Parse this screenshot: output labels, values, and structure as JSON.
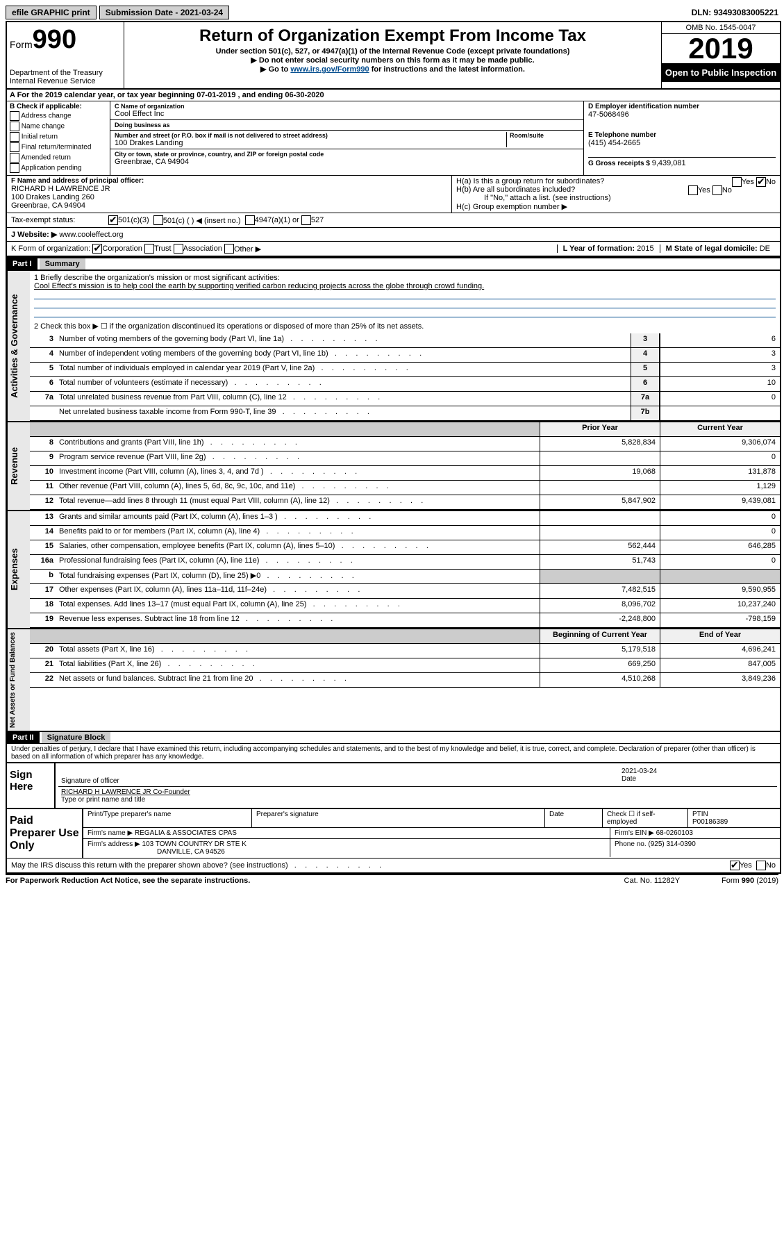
{
  "top": {
    "efile_btn": "efile GRAPHIC print",
    "sub_date_label": "Submission Date - ",
    "sub_date": "2021-03-24",
    "dln_label": "DLN: ",
    "dln": "93493083005221"
  },
  "header": {
    "form_prefix": "Form",
    "form_number": "990",
    "dept": "Department of the Treasury",
    "irs": "Internal Revenue Service",
    "title": "Return of Organization Exempt From Income Tax",
    "sub1": "Under section 501(c), 527, or 4947(a)(1) of the Internal Revenue Code (except private foundations)",
    "sub2": "▶ Do not enter social security numbers on this form as it may be made public.",
    "sub3_pre": "▶ Go to ",
    "sub3_link": "www.irs.gov/Form990",
    "sub3_post": " for instructions and the latest information.",
    "omb": "OMB No. 1545-0047",
    "year": "2019",
    "inspect": "Open to Public Inspection"
  },
  "rowA": {
    "text": "A For the 2019 calendar year, or tax year beginning 07-01-2019    , and ending 06-30-2020"
  },
  "boxB": {
    "label": "B Check if applicable:",
    "opts": [
      "Address change",
      "Name change",
      "Initial return",
      "Final return/terminated",
      "Amended return",
      "Application pending"
    ]
  },
  "boxC": {
    "name_label": "C Name of organization",
    "name": "Cool Effect Inc",
    "dba_label": "Doing business as",
    "dba": "",
    "addr_label": "Number and street (or P.O. box if mail is not delivered to street address)",
    "addr": "100 Drakes Landing",
    "room_label": "Room/suite",
    "city_label": "City or town, state or province, country, and ZIP or foreign postal code",
    "city": "Greenbrae, CA  94904"
  },
  "boxD": {
    "label": "D Employer identification number",
    "value": "47-5068496"
  },
  "boxE": {
    "label": "E Telephone number",
    "value": "(415) 454-2665"
  },
  "boxG": {
    "label": "G Gross receipts $ ",
    "value": "9,439,081"
  },
  "boxF": {
    "label": "F  Name and address of principal officer:",
    "name": "RICHARD H LAWRENCE JR",
    "addr1": "100 Drakes Landing 260",
    "addr2": "Greenbrae, CA  94904"
  },
  "boxH": {
    "ha_label": "H(a)  Is this a group return for subordinates?",
    "ha_yes": "Yes",
    "ha_no": "No",
    "hb_label": "H(b)  Are all subordinates included?",
    "hb_note": "If \"No,\" attach a list. (see instructions)",
    "hc_label": "H(c)  Group exemption number ▶"
  },
  "taxExempt": {
    "label": "Tax-exempt status:",
    "opt1": "501(c)(3)",
    "opt2": "501(c) (   ) ◀ (insert no.)",
    "opt3": "4947(a)(1) or",
    "opt4": "527"
  },
  "rowJ": {
    "label": "J   Website: ▶  ",
    "value": "www.cooleffect.org"
  },
  "rowK": {
    "label": "K Form of organization:",
    "opts": [
      "Corporation",
      "Trust",
      "Association",
      "Other ▶"
    ]
  },
  "rowL": {
    "label": "L Year of formation: ",
    "value": "2015"
  },
  "rowM": {
    "label": "M State of legal domicile: ",
    "value": "DE"
  },
  "part1": {
    "header": "Part I",
    "title": "Summary",
    "line1_label": "1   Briefly describe the organization's mission or most significant activities:",
    "line1_text": "Cool Effect's mission is to help cool the earth by supporting verified carbon reducing projects across the globe through crowd funding.",
    "line2": "2    Check this box ▶ ☐  if the organization discontinued its operations or disposed of more than 25% of its net assets.",
    "rows": [
      {
        "n": "3",
        "desc": "Number of voting members of the governing body (Part VI, line 1a)",
        "lbl": "3",
        "v": "6"
      },
      {
        "n": "4",
        "desc": "Number of independent voting members of the governing body (Part VI, line 1b)",
        "lbl": "4",
        "v": "3"
      },
      {
        "n": "5",
        "desc": "Total number of individuals employed in calendar year 2019 (Part V, line 2a)",
        "lbl": "5",
        "v": "3"
      },
      {
        "n": "6",
        "desc": "Total number of volunteers (estimate if necessary)",
        "lbl": "6",
        "v": "10"
      },
      {
        "n": "7a",
        "desc": "Total unrelated business revenue from Part VIII, column (C), line 12",
        "lbl": "7a",
        "v": "0"
      },
      {
        "n": "",
        "desc": "Net unrelated business taxable income from Form 990-T, line 39",
        "lbl": "7b",
        "v": ""
      }
    ],
    "prior_label": "Prior Year",
    "current_label": "Current Year",
    "beg_label": "Beginning of Current Year",
    "end_label": "End of Year"
  },
  "revenue": {
    "side": "Revenue",
    "rows": [
      {
        "n": "8",
        "desc": "Contributions and grants (Part VIII, line 1h)",
        "py": "5,828,834",
        "cy": "9,306,074"
      },
      {
        "n": "9",
        "desc": "Program service revenue (Part VIII, line 2g)",
        "py": "",
        "cy": "0"
      },
      {
        "n": "10",
        "desc": "Investment income (Part VIII, column (A), lines 3, 4, and 7d )",
        "py": "19,068",
        "cy": "131,878"
      },
      {
        "n": "11",
        "desc": "Other revenue (Part VIII, column (A), lines 5, 6d, 8c, 9c, 10c, and 11e)",
        "py": "",
        "cy": "1,129"
      },
      {
        "n": "12",
        "desc": "Total revenue—add lines 8 through 11 (must equal Part VIII, column (A), line 12)",
        "py": "5,847,902",
        "cy": "9,439,081"
      }
    ]
  },
  "expenses": {
    "side": "Expenses",
    "rows": [
      {
        "n": "13",
        "desc": "Grants and similar amounts paid (Part IX, column (A), lines 1–3 )",
        "py": "",
        "cy": "0"
      },
      {
        "n": "14",
        "desc": "Benefits paid to or for members (Part IX, column (A), line 4)",
        "py": "",
        "cy": "0"
      },
      {
        "n": "15",
        "desc": "Salaries, other compensation, employee benefits (Part IX, column (A), lines 5–10)",
        "py": "562,444",
        "cy": "646,285"
      },
      {
        "n": "16a",
        "desc": "Professional fundraising fees (Part IX, column (A), line 11e)",
        "py": "51,743",
        "cy": "0"
      },
      {
        "n": "b",
        "desc": "Total fundraising expenses (Part IX, column (D), line 25) ▶0",
        "py": "",
        "cy": "",
        "shaded": true
      },
      {
        "n": "17",
        "desc": "Other expenses (Part IX, column (A), lines 11a–11d, 11f–24e)",
        "py": "7,482,515",
        "cy": "9,590,955"
      },
      {
        "n": "18",
        "desc": "Total expenses. Add lines 13–17 (must equal Part IX, column (A), line 25)",
        "py": "8,096,702",
        "cy": "10,237,240"
      },
      {
        "n": "19",
        "desc": "Revenue less expenses. Subtract line 18 from line 12",
        "py": "-2,248,800",
        "cy": "-798,159"
      }
    ]
  },
  "netassets": {
    "side": "Net Assets or Fund Balances",
    "rows": [
      {
        "n": "20",
        "desc": "Total assets (Part X, line 16)",
        "py": "5,179,518",
        "cy": "4,696,241"
      },
      {
        "n": "21",
        "desc": "Total liabilities (Part X, line 26)",
        "py": "669,250",
        "cy": "847,005"
      },
      {
        "n": "22",
        "desc": "Net assets or fund balances. Subtract line 21 from line 20",
        "py": "4,510,268",
        "cy": "3,849,236"
      }
    ]
  },
  "gov_side": "Activities & Governance",
  "part2": {
    "header": "Part II",
    "title": "Signature Block",
    "declaration": "Under penalties of perjury, I declare that I have examined this return, including accompanying schedules and statements, and to the best of my knowledge and belief, it is true, correct, and complete. Declaration of preparer (other than officer) is based on all information of which preparer has any knowledge."
  },
  "sign": {
    "here": "Sign Here",
    "sig_of_officer": "Signature of officer",
    "date": "2021-03-24",
    "date_label": "Date",
    "name": "RICHARD H LAWRENCE JR  Co-Founder",
    "name_label": "Type or print name and title"
  },
  "preparer": {
    "label": "Paid Preparer Use Only",
    "print_label": "Print/Type preparer's name",
    "sig_label": "Preparer's signature",
    "date_label": "Date",
    "check_label": "Check ☐ if self-employed",
    "ptin_label": "PTIN",
    "ptin": "P00186389",
    "firm_name_label": "Firm's name    ▶",
    "firm_name": "REGALIA & ASSOCIATES CPAS",
    "firm_ein_label": "Firm's EIN ▶",
    "firm_ein": "68-0260103",
    "firm_addr_label": "Firm's address ▶",
    "firm_addr1": "103 TOWN COUNTRY DR STE K",
    "firm_addr2": "DANVILLE, CA  94526",
    "phone_label": "Phone no. ",
    "phone": "(925) 314-0390"
  },
  "discuss": {
    "text": "May the IRS discuss this return with the preparer shown above? (see instructions)",
    "yes": "Yes",
    "no": "No"
  },
  "footer": {
    "left": "For Paperwork Reduction Act Notice, see the separate instructions.",
    "mid": "Cat. No. 11282Y",
    "right": "Form 990 (2019)"
  }
}
